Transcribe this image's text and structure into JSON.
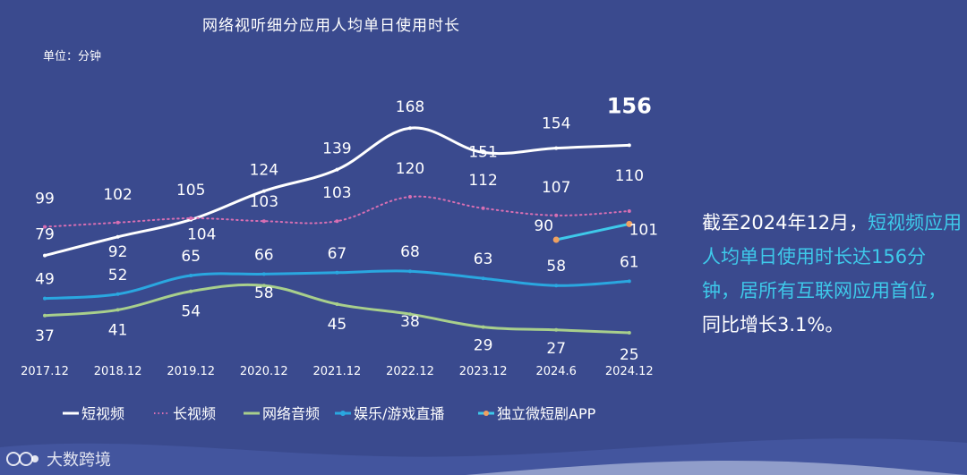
{
  "chart_data": {
    "type": "line",
    "title": "网络视听细分应用人均单日使用时长",
    "unit_label": "单位：分钟",
    "categories": [
      "2017.12",
      "2018.12",
      "2019.12",
      "2020.12",
      "2021.12",
      "2022.12",
      "2023.12",
      "2024.6",
      "2024.12"
    ],
    "series": [
      {
        "name": "短视频",
        "color": "#ffffff",
        "values": [
          79,
          92,
          104,
          124,
          139,
          168,
          151,
          154,
          156
        ]
      },
      {
        "name": "长视频",
        "color": "#d86fb3",
        "values": [
          99,
          102,
          105,
          103,
          103,
          120,
          112,
          107,
          110
        ]
      },
      {
        "name": "网络音频",
        "color": "#a8cf8c",
        "values": [
          37,
          41,
          54,
          58,
          45,
          38,
          29,
          27,
          25
        ]
      },
      {
        "name": "娱乐/游戏直播",
        "color": "#2aa7e0",
        "values": [
          49,
          52,
          65,
          66,
          67,
          68,
          63,
          58,
          61
        ]
      },
      {
        "name": "独立微短剧APP",
        "color": "#3ec9ea",
        "values": [
          null,
          null,
          null,
          null,
          null,
          null,
          null,
          90,
          101
        ]
      }
    ],
    "data_labels": {
      "短视频": [
        "79",
        "92",
        "104",
        "124",
        "139",
        "168",
        "151",
        "154",
        "156"
      ],
      "长视频": [
        "99",
        "102",
        "105",
        "103",
        "103",
        "120",
        "112",
        "107",
        "110"
      ],
      "网络音频": [
        "37",
        "41",
        "54",
        "58",
        "45",
        "38",
        "29",
        "27",
        "25"
      ],
      "娱乐/游戏直播": [
        "49",
        "52",
        "65",
        "66",
        "67",
        "68",
        "63",
        "58",
        "61"
      ],
      "独立微短剧APP": [
        "",
        "",
        "",
        "",
        "",
        "",
        "",
        "90",
        "101"
      ]
    },
    "legend_position": "bottom",
    "grid": false
  },
  "side_note": {
    "part1": "截至2024年12月，",
    "part2_highlight": "短视频应用人均单日使用时长达156分钟，居所有互联网应用首位，",
    "part3": "同比增长3.1%。"
  },
  "watermark": "大数跨境",
  "colors": {
    "background": "#3a4a8e",
    "accent": "#3ec9ea"
  }
}
